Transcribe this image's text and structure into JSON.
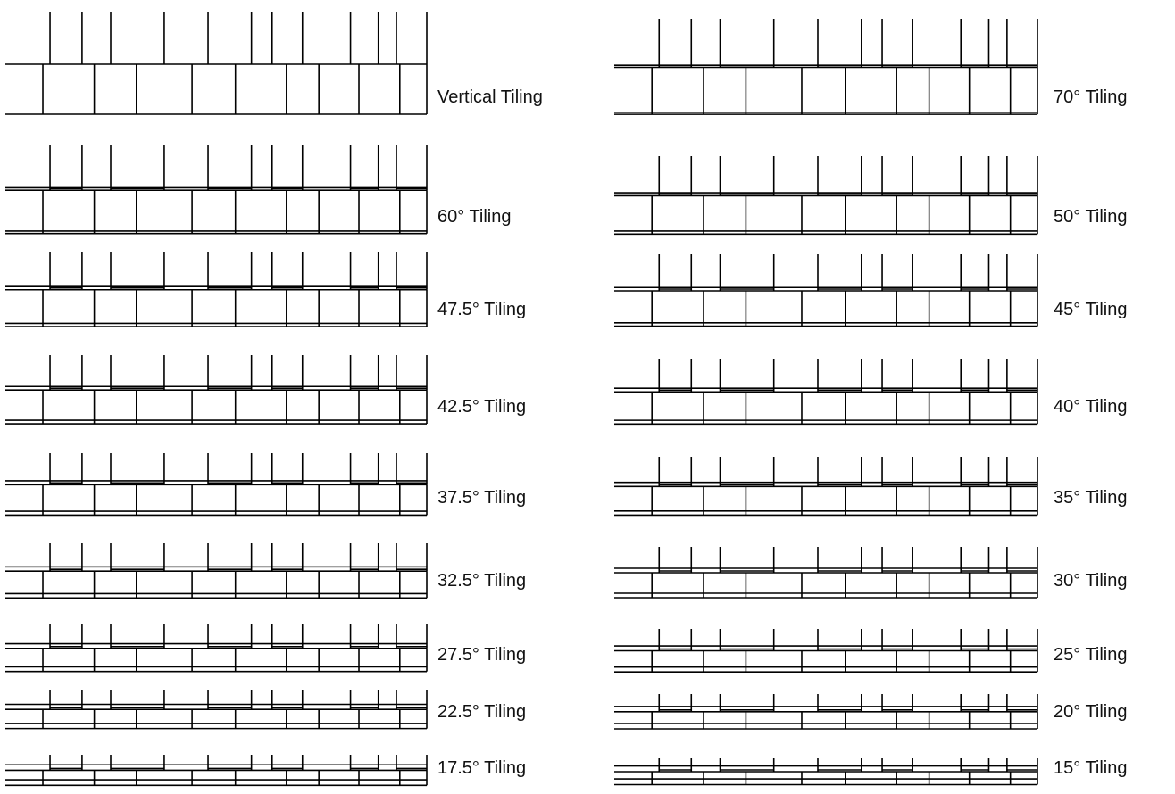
{
  "figure": {
    "stroke_color": "#000000",
    "text_color": "#111111",
    "background": "#ffffff"
  },
  "panels": [
    {
      "label": "Vertical Tiling",
      "angle_deg": 90,
      "column": "left"
    },
    {
      "label": "70° Tiling",
      "angle_deg": 70,
      "column": "right"
    },
    {
      "label": "60° Tiling",
      "angle_deg": 60,
      "column": "left"
    },
    {
      "label": "50° Tiling",
      "angle_deg": 50,
      "column": "right"
    },
    {
      "label": "47.5° Tiling",
      "angle_deg": 47.5,
      "column": "left"
    },
    {
      "label": "45° Tiling",
      "angle_deg": 45,
      "column": "right"
    },
    {
      "label": "42.5° Tiling",
      "angle_deg": 42.5,
      "column": "left"
    },
    {
      "label": "40° Tiling",
      "angle_deg": 40,
      "column": "right"
    },
    {
      "label": "37.5° Tiling",
      "angle_deg": 37.5,
      "column": "left"
    },
    {
      "label": "35° Tiling",
      "angle_deg": 35,
      "column": "right"
    },
    {
      "label": "32.5° Tiling",
      "angle_deg": 32.5,
      "column": "left"
    },
    {
      "label": "30° Tiling",
      "angle_deg": 30,
      "column": "right"
    },
    {
      "label": "27.5° Tiling",
      "angle_deg": 27.5,
      "column": "left"
    },
    {
      "label": "25° Tiling",
      "angle_deg": 25,
      "column": "right"
    },
    {
      "label": "22.5° Tiling",
      "angle_deg": 22.5,
      "column": "left"
    },
    {
      "label": "20° Tiling",
      "angle_deg": 20,
      "column": "right"
    },
    {
      "label": "17.5° Tiling",
      "angle_deg": 17.5,
      "column": "left"
    },
    {
      "label": "15° Tiling",
      "angle_deg": 15,
      "column": "right"
    }
  ]
}
